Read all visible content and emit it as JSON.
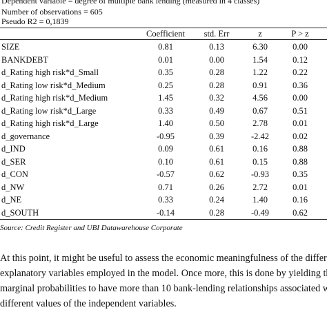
{
  "header": {
    "line1": "Dependent variable  = degree of multiple bank lending (measured in 4 classes)",
    "line2": "Number of observations = 605",
    "line3": "Pseudo R2 = 0,1839"
  },
  "table": {
    "columns": [
      "Coefficient",
      "std. Err",
      "z",
      "P > z"
    ],
    "rows": [
      {
        "label": "SIZE",
        "values": [
          "0.81",
          "0.13",
          "6.30",
          "0.00"
        ]
      },
      {
        "label": "BANKDEBT",
        "values": [
          "0.01",
          "0.00",
          "1.54",
          "0.12"
        ]
      },
      {
        "label": "d_Rating high risk*d_Small",
        "values": [
          "0.35",
          "0.28",
          "1.22",
          "0.22"
        ]
      },
      {
        "label": "d_Rating low risk*d_Medium",
        "values": [
          "0.25",
          "0.28",
          "0.91",
          "0.36"
        ]
      },
      {
        "label": "d_Rating high risk*d_Medium",
        "values": [
          "1.45",
          "0.32",
          "4.56",
          "0.00"
        ]
      },
      {
        "label": "d_Rating low risk*d_Large",
        "values": [
          "0.33",
          "0.49",
          "0.67",
          "0.51"
        ]
      },
      {
        "label": "d_Rating high risk*d_Large",
        "values": [
          "1.40",
          "0.50",
          "2.78",
          "0.01"
        ]
      },
      {
        "label": "d_governance",
        "values": [
          "-0.95",
          "0.39",
          "-2.42",
          "0.02"
        ]
      },
      {
        "label": "d_IND",
        "values": [
          "0.09",
          "0.61",
          "0.16",
          "0.88"
        ]
      },
      {
        "label": "d_SER",
        "values": [
          "0.10",
          "0.61",
          "0.15",
          "0.88"
        ]
      },
      {
        "label": "d_CON",
        "values": [
          "-0.57",
          "0.62",
          "-0.93",
          "0.35"
        ]
      },
      {
        "label": "d_NW",
        "values": [
          "0.71",
          "0.26",
          "2.72",
          "0.01"
        ]
      },
      {
        "label": "d_NE",
        "values": [
          "0.33",
          "0.24",
          "1.40",
          "0.16"
        ]
      },
      {
        "label": "d_SOUTH",
        "values": [
          "-0.14",
          "0.28",
          "-0.49",
          "0.62"
        ]
      }
    ]
  },
  "source": "Source: Credit Register and UBI Datawarehouse Corporate",
  "paragraph": [
    "At this point, it might be useful to assess the economic meaningfulness of the different",
    "explanatory variables employed in the model. Once more, this is done by yielding the",
    "marginal probabilities to have more than 10 bank-lending relationships associated with",
    "different values of the independent variables."
  ]
}
